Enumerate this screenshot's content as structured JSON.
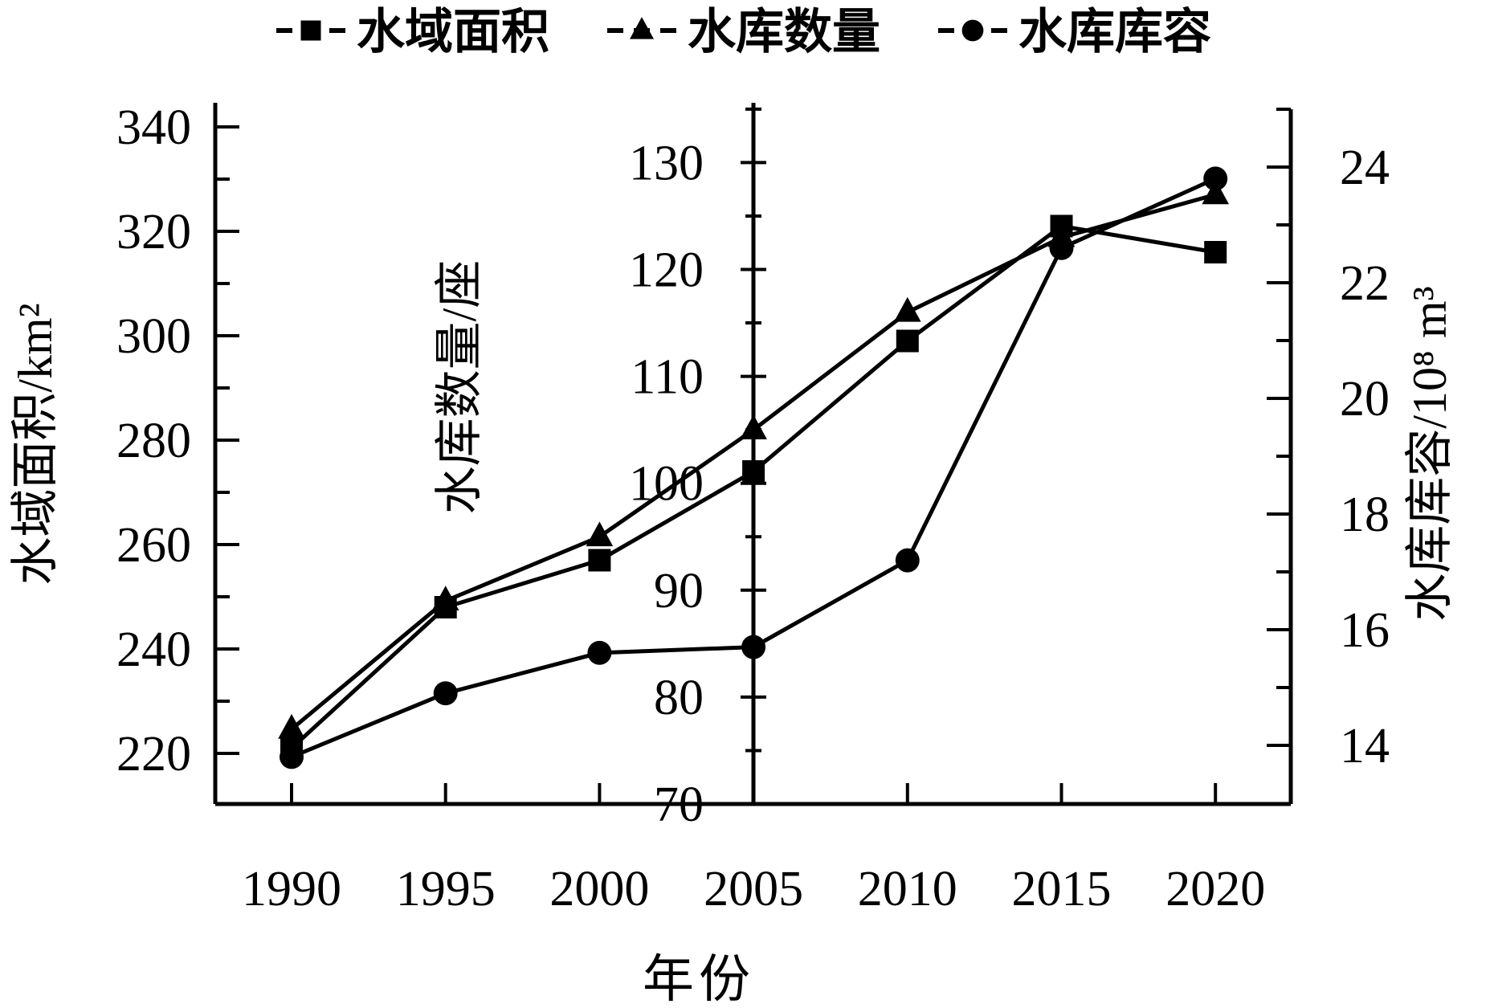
{
  "page": {
    "background": "#ffffff",
    "foreground": "#000000"
  },
  "chart_data": {
    "type": "line",
    "title": "",
    "xlabel": "年份",
    "x": [
      1990,
      1995,
      2000,
      2005,
      2010,
      2015,
      2020
    ],
    "x_tick_labels": [
      "1990",
      "1995",
      "2000",
      "2005",
      "2010",
      "2015",
      "2020"
    ],
    "legend_position": "top",
    "grid": false,
    "axes": {
      "left": {
        "label": "水域面积/km²",
        "ticks": [
          220,
          240,
          260,
          280,
          300,
          320,
          340
        ],
        "range": [
          210,
          345
        ]
      },
      "middle": {
        "label": "水库数量/座",
        "ticks": [
          70,
          80,
          90,
          100,
          110,
          120,
          130
        ],
        "range": [
          70,
          135
        ],
        "position_x": 2005
      },
      "right": {
        "label": "水库库容/10⁸ m³",
        "ticks": [
          14,
          16,
          18,
          20,
          22,
          24
        ],
        "range": [
          13,
          25
        ]
      }
    },
    "series": [
      {
        "name": "水域面积",
        "marker": "square",
        "axis": "left",
        "values": [
          221,
          248,
          257,
          274,
          299,
          321,
          316
        ]
      },
      {
        "name": "水库数量",
        "marker": "triangle",
        "axis": "middle",
        "values": [
          77,
          89,
          95,
          105,
          116,
          123,
          127
        ]
      },
      {
        "name": "水库库容",
        "marker": "circle",
        "axis": "right",
        "values": [
          13.8,
          14.9,
          15.6,
          15.7,
          17.2,
          22.6,
          23.8
        ]
      }
    ]
  }
}
